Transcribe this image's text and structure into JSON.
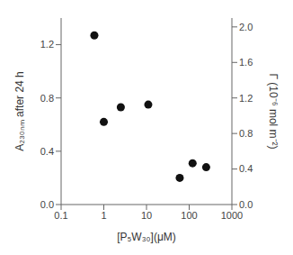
{
  "chart_data": {
    "type": "scatter",
    "x": [
      0.6,
      1.0,
      2.5,
      11,
      60,
      120,
      250
    ],
    "values": [
      1.27,
      0.62,
      0.73,
      0.75,
      0.2,
      0.31,
      0.28
    ],
    "color": "#111111",
    "xlabel": "[P₅W₃₀](μM)",
    "ylabel": "A₂₃₀ₙₘ after 24 h",
    "y2label": "Γ (10⁻⁶ mol m⁻²)",
    "log": "x",
    "grid": false,
    "xlim": [
      0.1,
      1000
    ],
    "xticks": [
      0.1,
      1,
      10,
      100,
      1000
    ],
    "ylim": [
      0.0,
      1.4
    ],
    "yticks": [
      {
        "value": 0.0,
        "label": "0.0"
      },
      0.4,
      0.8,
      1.2
    ],
    "y2lim": [
      0.0,
      2.1
    ],
    "y2ticks": [
      {
        "value": 0.0,
        "label": "0.0"
      },
      0.4,
      0.8,
      1.2,
      1.6,
      {
        "value": 2.0,
        "label": "2.0"
      }
    ]
  }
}
